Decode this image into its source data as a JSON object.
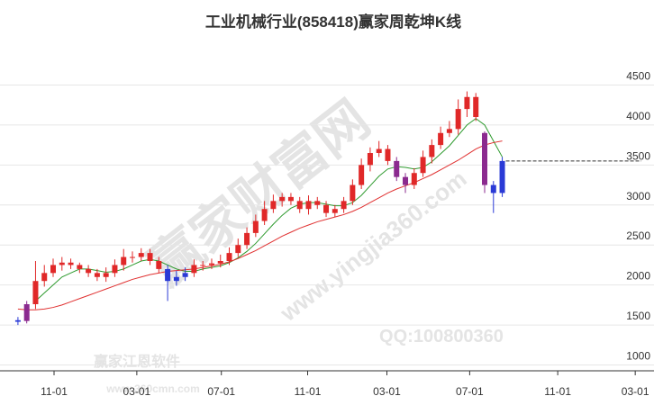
{
  "chart_data": {
    "type": "candlestick",
    "title": "工业机械行业(858418)赢家周乾坤K线",
    "watermarks": [
      "赢家财富网",
      "www.yingjia360.com",
      "QQ:100800360",
      "赢家江恩软件",
      "www.360cmn.com"
    ],
    "open": [
      1560,
      1550,
      1760,
      2050,
      2150,
      2250,
      2280,
      2250,
      2200,
      2150,
      2100,
      2150,
      2250,
      2350,
      2350,
      2400,
      2300,
      2200,
      2050,
      2100,
      2150,
      2250,
      2250,
      2270,
      2300,
      2400,
      2500,
      2650,
      2800,
      2950,
      3050,
      3100,
      3050,
      2950,
      3050,
      3000,
      2900,
      2950,
      3050,
      3250,
      3500,
      3650,
      3700,
      3550,
      3350,
      3250,
      3400,
      3600,
      3750,
      3900,
      3950,
      4200,
      4350,
      3900,
      3250,
      3150
    ],
    "high": [
      1600,
      1800,
      2300,
      2250,
      2330,
      2350,
      2330,
      2280,
      2250,
      2200,
      2220,
      2320,
      2450,
      2420,
      2460,
      2450,
      2350,
      2250,
      2180,
      2220,
      2320,
      2300,
      2330,
      2380,
      2470,
      2580,
      2720,
      2880,
      3050,
      3130,
      3150,
      3150,
      3100,
      3120,
      3100,
      3050,
      3000,
      3100,
      3320,
      3580,
      3720,
      3800,
      3750,
      3600,
      3400,
      3460,
      3680,
      3820,
      3980,
      4050,
      4320,
      4420,
      4400,
      3920,
      3300,
      3600
    ],
    "low": [
      1500,
      1520,
      1700,
      1980,
      2100,
      2180,
      2200,
      2150,
      2100,
      2050,
      2040,
      2100,
      2180,
      2280,
      2300,
      2250,
      2150,
      1800,
      1990,
      2050,
      2100,
      2180,
      2200,
      2220,
      2250,
      2350,
      2450,
      2600,
      2750,
      2900,
      2980,
      3000,
      2900,
      2880,
      2950,
      2850,
      2850,
      2900,
      3000,
      3200,
      3420,
      3600,
      3500,
      3300,
      3150,
      3200,
      3350,
      3520,
      3700,
      3850,
      3880,
      4100,
      4050,
      3150,
      2900,
      3100
    ],
    "close": [
      1540,
      1760,
      2050,
      2150,
      2250,
      2280,
      2250,
      2200,
      2150,
      2100,
      2150,
      2250,
      2350,
      2350,
      2400,
      2300,
      2200,
      2050,
      2100,
      2150,
      2250,
      2250,
      2270,
      2300,
      2400,
      2500,
      2650,
      2800,
      2950,
      3050,
      3100,
      3050,
      2950,
      3050,
      3000,
      2900,
      2950,
      3050,
      3250,
      3500,
      3650,
      3700,
      3550,
      3350,
      3250,
      3400,
      3600,
      3750,
      3900,
      3950,
      4200,
      4350,
      4100,
      3250,
      3150,
      3550
    ],
    "colors": [
      "#2a3ad6",
      "#8b2a8f",
      "#e02828",
      "#e02828",
      "#e02828",
      "#e02828",
      "#e02828",
      "#e02828",
      "#e02828",
      "#e02828",
      "#e02828",
      "#e02828",
      "#e02828",
      "#e02828",
      "#e02828",
      "#e02828",
      "#e02828",
      "#2a3ad6",
      "#2a3ad6",
      "#2a3ad6",
      "#e02828",
      "#e02828",
      "#e02828",
      "#e02828",
      "#e02828",
      "#e02828",
      "#e02828",
      "#e02828",
      "#e02828",
      "#e02828",
      "#e02828",
      "#e02828",
      "#e02828",
      "#e02828",
      "#e02828",
      "#e02828",
      "#e02828",
      "#e02828",
      "#e02828",
      "#e02828",
      "#e02828",
      "#e02828",
      "#e02828",
      "#8b2a8f",
      "#8b2a8f",
      "#e02828",
      "#e02828",
      "#e02828",
      "#e02828",
      "#e02828",
      "#e02828",
      "#e02828",
      "#e02828",
      "#8b2a8f",
      "#2a3ad6",
      "#2a3ad6"
    ],
    "lines": [
      {
        "color": "#2e9a2e",
        "values": [
          null,
          null,
          1800,
          1900,
          2000,
          2100,
          2150,
          2200,
          2200,
          2180,
          2160,
          2170,
          2200,
          2250,
          2300,
          2320,
          2300,
          2250,
          2200,
          2170,
          2170,
          2200,
          2220,
          2240,
          2280,
          2340,
          2420,
          2520,
          2640,
          2760,
          2870,
          2960,
          3010,
          3030,
          3030,
          3010,
          2990,
          2990,
          3030,
          3120,
          3240,
          3360,
          3450,
          3480,
          3470,
          3450,
          3470,
          3540,
          3640,
          3740,
          3870,
          4000,
          4080,
          4000,
          3800,
          3600
        ]
      },
      {
        "color": "#e03030",
        "values": [
          1700,
          1690,
          1690,
          1700,
          1720,
          1750,
          1790,
          1830,
          1870,
          1910,
          1950,
          1990,
          2030,
          2070,
          2100,
          2130,
          2150,
          2170,
          2180,
          2190,
          2200,
          2220,
          2240,
          2260,
          2290,
          2330,
          2380,
          2430,
          2490,
          2550,
          2610,
          2660,
          2710,
          2750,
          2790,
          2820,
          2850,
          2880,
          2920,
          2970,
          3030,
          3090,
          3150,
          3200,
          3240,
          3280,
          3330,
          3380,
          3440,
          3500,
          3560,
          3630,
          3700,
          3750,
          3780,
          3800
        ]
      }
    ],
    "xlim": [
      -0.4,
      70.8
    ],
    "xticks": [
      {
        "value": 4.1,
        "label": "11-01"
      },
      {
        "value": 13.5,
        "label": "03-01"
      },
      {
        "value": 23.1,
        "label": "07-01"
      },
      {
        "value": 32.9,
        "label": "11-01"
      },
      {
        "value": 41.9,
        "label": "03-01"
      },
      {
        "value": 51.3,
        "label": "07-01"
      },
      {
        "value": 61.3,
        "label": "11-01"
      },
      {
        "value": 70.1,
        "label": "03-01"
      }
    ],
    "ylim": [
      950,
      5000
    ],
    "yticks": [
      1000,
      1500,
      2000,
      2500,
      3000,
      3500,
      4000,
      4500
    ],
    "grid": true
  }
}
